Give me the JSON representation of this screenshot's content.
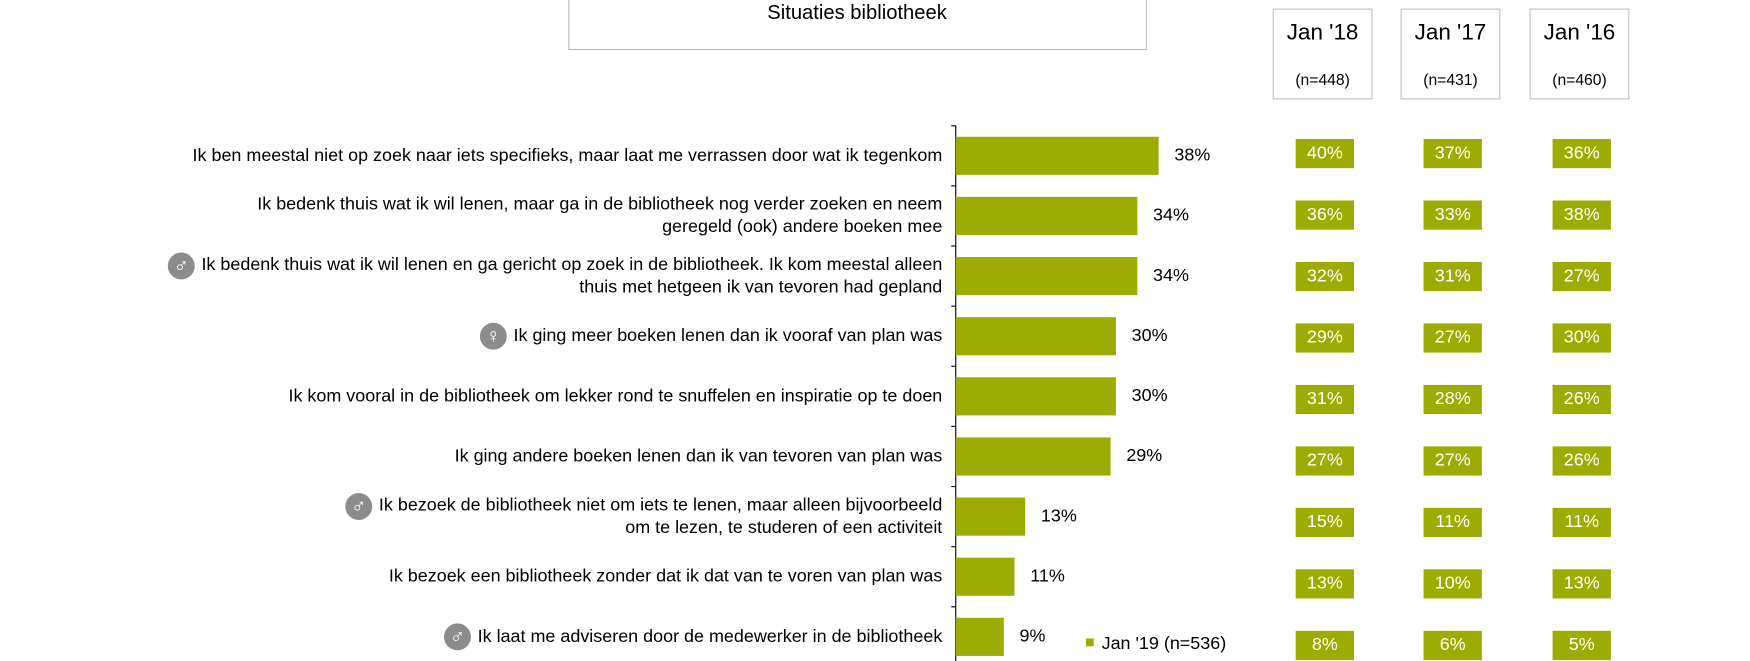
{
  "chart_data": {
    "type": "bar",
    "orientation": "horizontal",
    "title": "Situaties bibliotheek",
    "categories": [
      "Ik ben meestal niet op zoek naar iets specifieks, maar laat me verrassen door wat ik tegenkom",
      "Ik bedenk thuis wat ik wil lenen, maar ga in de bibliotheek nog verder zoeken en neem\ngeregeld (ook) andere boeken mee",
      "Ik bedenk thuis wat ik wil lenen en ga gericht op zoek in de bibliotheek. Ik kom meestal alleen\nthuis met hetgeen ik van tevoren had gepland",
      "Ik ging meer boeken lenen dan ik vooraf van plan was",
      "Ik kom vooral in de bibliotheek om lekker rond te snuffelen en inspiratie op te doen",
      "Ik ging andere boeken lenen dan ik van tevoren van plan was",
      "Ik bezoek de bibliotheek niet om iets te lenen, maar alleen bijvoorbeeld\nom te lezen, te studeren of een activiteit",
      "Ik bezoek een bibliotheek zonder dat ik dat van te voren van plan was",
      "Ik laat me adviseren door de medewerker in de bibliotheek"
    ],
    "icons": [
      null,
      null,
      "♂",
      "♀",
      null,
      null,
      "♂",
      null,
      "♂"
    ],
    "series": [
      {
        "name": "Jan '19 (n=536)",
        "color": "#9dac00",
        "values": [
          38,
          34,
          34,
          30,
          30,
          29,
          13,
          11,
          9
        ],
        "value_labels": [
          "38%",
          "34%",
          "34%",
          "30%",
          "30%",
          "29%",
          "13%",
          "11%",
          "9%"
        ]
      }
    ],
    "xlim": [
      0,
      100
    ],
    "comparison": [
      {
        "name": "Jan '18",
        "n": "(n=448)",
        "values": [
          40,
          36,
          32,
          29,
          31,
          27,
          15,
          13,
          8
        ],
        "value_labels": [
          "40%",
          "36%",
          "32%",
          "29%",
          "31%",
          "27%",
          "15%",
          "13%",
          "8%"
        ]
      },
      {
        "name": "Jan '17",
        "n": "(n=431)",
        "values": [
          37,
          33,
          31,
          27,
          28,
          27,
          11,
          10,
          6
        ],
        "value_labels": [
          "37%",
          "33%",
          "31%",
          "27%",
          "28%",
          "27%",
          "11%",
          "10%",
          "6%"
        ]
      },
      {
        "name": "Jan '16",
        "n": "(n=460)",
        "values": [
          36,
          38,
          27,
          30,
          26,
          26,
          11,
          13,
          5
        ],
        "value_labels": [
          "36%",
          "38%",
          "27%",
          "30%",
          "26%",
          "26%",
          "11%",
          "13%",
          "5%"
        ]
      }
    ]
  }
}
